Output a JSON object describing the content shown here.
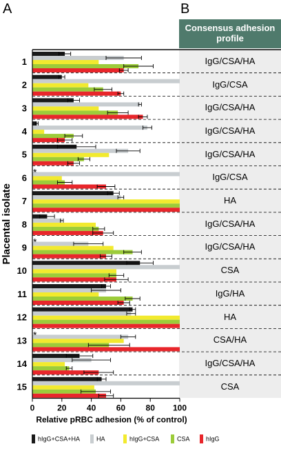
{
  "panel_a_label": "A",
  "panel_b_label": "B",
  "profile_header": "Consensus adhesion profile",
  "chart_data": {
    "type": "bar",
    "orientation": "horizontal",
    "xlabel": "Relative pRBC adhesion (% of control)",
    "ylabel": "Placental isolate",
    "xlim": [
      0,
      100
    ],
    "xticks": [
      0,
      20,
      40,
      60,
      80,
      100
    ],
    "categories": [
      "1",
      "2",
      "3",
      "4",
      "5",
      "6",
      "7",
      "8",
      "9",
      "10",
      "11",
      "12",
      "13",
      "14",
      "15"
    ],
    "starred": [
      "6",
      "9",
      "13"
    ],
    "star_symbol": "*",
    "series": [
      {
        "name": "hIgG+CSA+HA",
        "color": "#1a1a1a",
        "values": [
          22,
          20,
          28,
          3,
          30,
          0,
          55,
          10,
          0,
          73,
          50,
          68,
          0,
          32,
          47
        ],
        "errors": [
          4,
          2,
          4,
          1,
          13,
          0,
          4,
          5,
          0,
          9,
          3,
          2,
          0,
          9,
          3
        ]
      },
      {
        "name": "HA",
        "color": "#c8cdd0",
        "values": [
          62,
          100,
          73,
          78,
          65,
          100,
          60,
          20,
          38,
          100,
          50,
          67,
          65,
          40,
          100
        ],
        "errors": [
          12,
          0,
          1,
          3,
          8,
          0,
          2,
          1,
          10,
          0,
          10,
          3,
          5,
          13,
          0
        ]
      },
      {
        "name": "hIgG+CSA",
        "color": "#f2ea2e",
        "values": [
          45,
          38,
          45,
          8,
          52,
          20,
          100,
          43,
          55,
          57,
          45,
          100,
          62,
          22,
          42
        ]
      },
      {
        "name": "CSA",
        "color": "#9ccc3a",
        "values": [
          72,
          48,
          58,
          28,
          35,
          22,
          100,
          45,
          68,
          57,
          68,
          100,
          52,
          25,
          43
        ],
        "errors": [
          10,
          6,
          7,
          6,
          4,
          5,
          0,
          4,
          6,
          5,
          5,
          0,
          14,
          2,
          10
        ]
      },
      {
        "name": "hIgG",
        "color": "#e8262b",
        "values": [
          62,
          60,
          75,
          22,
          28,
          50,
          100,
          48,
          50,
          57,
          62,
          100,
          100,
          45,
          50
        ],
        "errors": [
          3,
          2,
          3,
          5,
          4,
          6,
          0,
          7,
          4,
          8,
          4,
          0,
          0,
          10,
          5
        ]
      }
    ],
    "legend_position": "bottom"
  },
  "profiles": [
    "IgG/CSA/HA",
    "IgG/CSA",
    "IgG/CSA/HA",
    "IgG/CSA/HA",
    "IgG/CSA/HA",
    "IgG/CSA",
    "HA",
    "IgG/CSA/HA",
    "IgG/CSA/HA",
    "CSA",
    "IgG/HA",
    "HA",
    "CSA/HA",
    "IgG/CSA/HA",
    "CSA"
  ],
  "legend": [
    {
      "label": "hIgG+CSA+HA",
      "color": "#1a1a1a"
    },
    {
      "label": "HA",
      "color": "#c8cdd0"
    },
    {
      "label": "hIgG+CSA",
      "color": "#f2ea2e"
    },
    {
      "label": "CSA",
      "color": "#9ccc3a"
    },
    {
      "label": "hIgG",
      "color": "#e8262b"
    }
  ]
}
